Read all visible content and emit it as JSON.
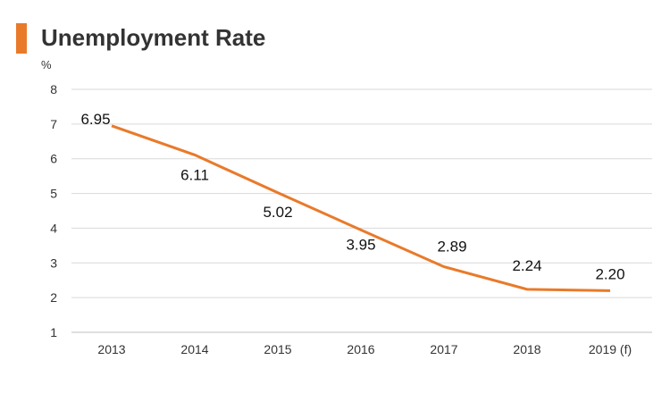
{
  "colors": {
    "accent": "#E97A2A",
    "grid": "#d9d9d9",
    "text": "#333333"
  },
  "chart_data": {
    "type": "line",
    "title": "Unemployment Rate",
    "ylabel": "%",
    "xlabel": "",
    "categories": [
      "2013",
      "2014",
      "2015",
      "2016",
      "2017",
      "2018",
      "2019 (f)"
    ],
    "series": [
      {
        "values": [
          6.95,
          6.11,
          5.02,
          3.95,
          2.89,
          2.24,
          2.2
        ],
        "labels": [
          "6.95",
          "6.11",
          "5.02",
          "3.95",
          "2.89",
          "2.24",
          "2.20"
        ]
      }
    ],
    "ylim": [
      1,
      8
    ],
    "yticks": [
      "1",
      "2",
      "3",
      "4",
      "5",
      "6",
      "7",
      "8"
    ],
    "grid": true,
    "legend": "none"
  }
}
